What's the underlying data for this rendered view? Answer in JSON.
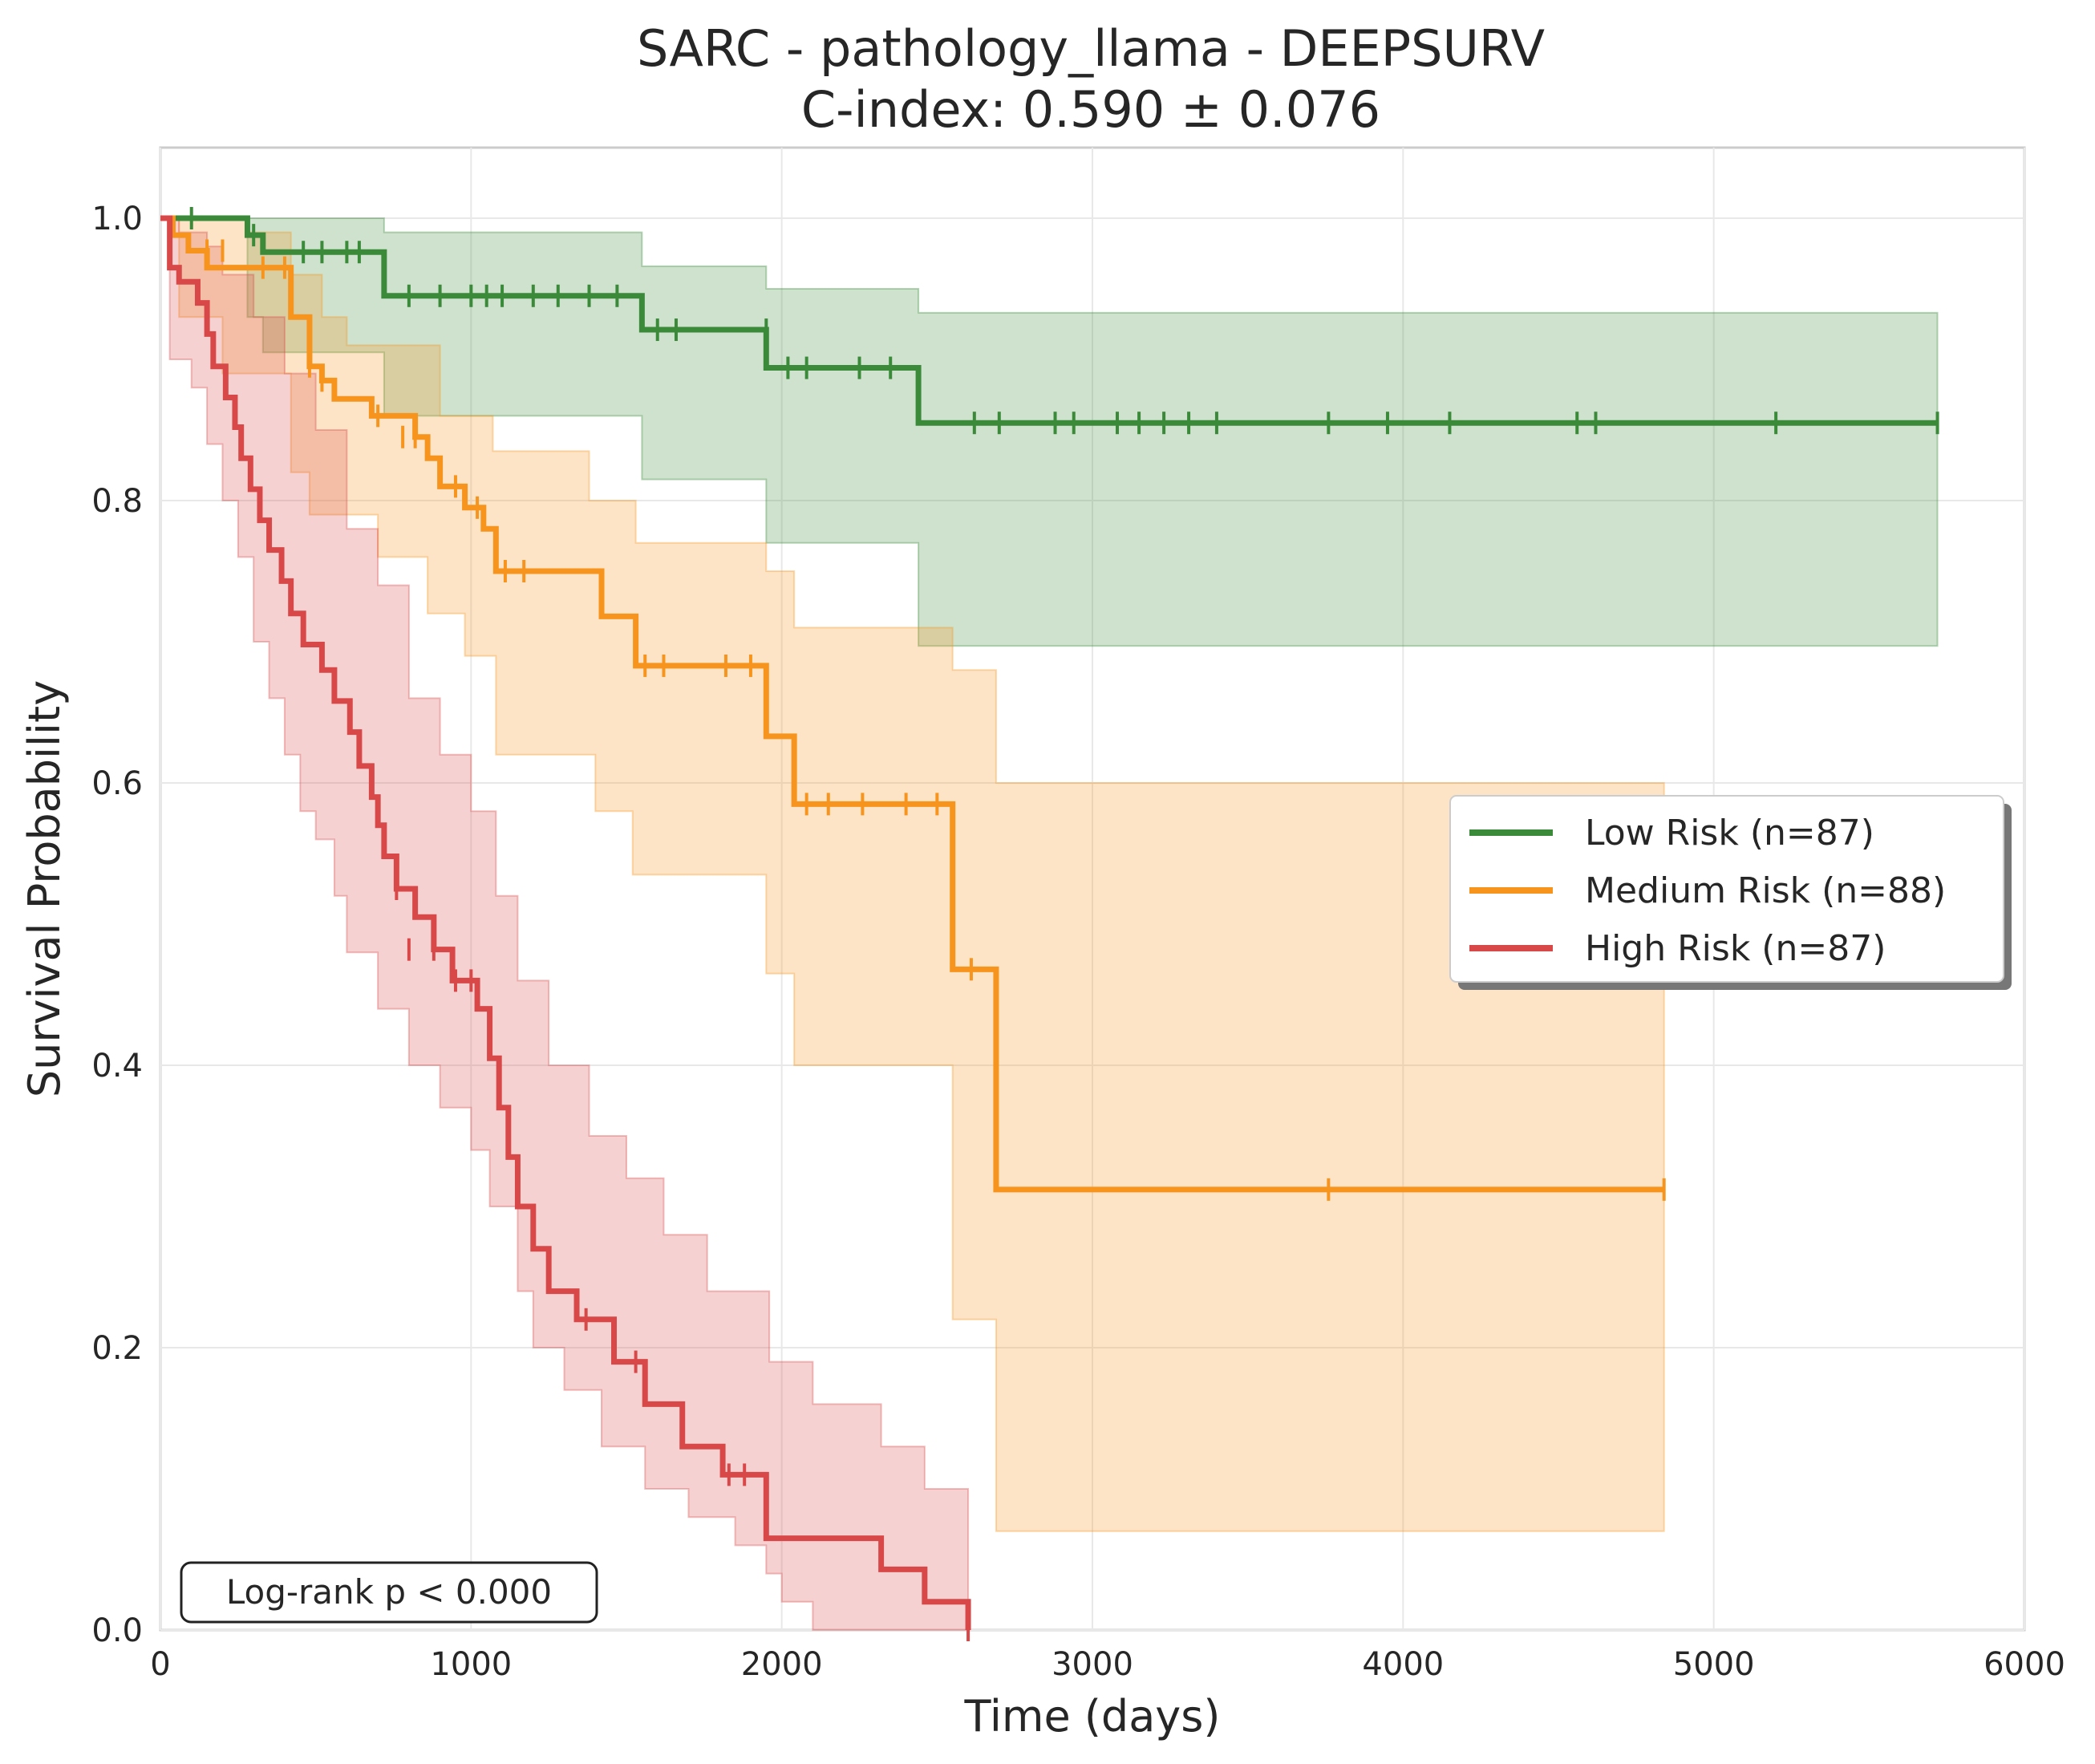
{
  "chart_data": {
    "type": "line",
    "subtype": "kaplan-meier",
    "title": "SARC - pathology_llama - DEEPSURV",
    "subtitle": "C-index: 0.590 ± 0.076",
    "xlabel": "Time (days)",
    "ylabel": "Survival Probability",
    "xlim": [
      0,
      6000
    ],
    "ylim": [
      0,
      1.05
    ],
    "xticks": [
      0,
      1000,
      2000,
      3000,
      4000,
      5000,
      6000
    ],
    "xtick_labels": [
      "0",
      "1000",
      "2000",
      "3000",
      "4000",
      "5000",
      "6000"
    ],
    "yticks": [
      0.0,
      0.2,
      0.4,
      0.6,
      0.8,
      1.0
    ],
    "ytick_labels": [
      "0.0",
      "0.2",
      "0.4",
      "0.6",
      "0.8",
      "1.0"
    ],
    "grid": true,
    "legend_position": "center-right",
    "annotation": "Log-rank p < 0.000",
    "series": [
      {
        "name": "Low Risk (n=87)",
        "color": "#3a8a3a",
        "steps": [
          [
            0,
            1.0
          ],
          [
            280,
            0.988
          ],
          [
            330,
            0.976
          ],
          [
            720,
            0.945
          ],
          [
            1550,
            0.921
          ],
          [
            1950,
            0.894
          ],
          [
            2440,
            0.855
          ],
          [
            5720,
            0.855
          ]
        ],
        "ci_upper": [
          [
            0,
            1.0
          ],
          [
            280,
            1.0
          ],
          [
            720,
            0.99
          ],
          [
            1550,
            0.966
          ],
          [
            1950,
            0.95
          ],
          [
            2440,
            0.933
          ],
          [
            5720,
            0.933
          ]
        ],
        "ci_lower": [
          [
            0,
            1.0
          ],
          [
            280,
            0.93
          ],
          [
            330,
            0.905
          ],
          [
            720,
            0.86
          ],
          [
            1550,
            0.815
          ],
          [
            1950,
            0.77
          ],
          [
            2440,
            0.697
          ],
          [
            5720,
            0.697
          ]
        ],
        "censors": [
          [
            100,
            1.0
          ],
          [
            300,
            0.988
          ],
          [
            460,
            0.976
          ],
          [
            520,
            0.976
          ],
          [
            600,
            0.976
          ],
          [
            640,
            0.976
          ],
          [
            800,
            0.945
          ],
          [
            900,
            0.945
          ],
          [
            1000,
            0.945
          ],
          [
            1050,
            0.945
          ],
          [
            1100,
            0.945
          ],
          [
            1200,
            0.945
          ],
          [
            1280,
            0.945
          ],
          [
            1380,
            0.945
          ],
          [
            1470,
            0.945
          ],
          [
            1600,
            0.921
          ],
          [
            1660,
            0.921
          ],
          [
            1950,
            0.921
          ],
          [
            2020,
            0.894
          ],
          [
            2080,
            0.894
          ],
          [
            2250,
            0.894
          ],
          [
            2350,
            0.894
          ],
          [
            2620,
            0.855
          ],
          [
            2700,
            0.855
          ],
          [
            2880,
            0.855
          ],
          [
            2940,
            0.855
          ],
          [
            3080,
            0.855
          ],
          [
            3150,
            0.855
          ],
          [
            3230,
            0.855
          ],
          [
            3310,
            0.855
          ],
          [
            3400,
            0.855
          ],
          [
            3760,
            0.855
          ],
          [
            3950,
            0.855
          ],
          [
            4150,
            0.855
          ],
          [
            4560,
            0.855
          ],
          [
            4620,
            0.855
          ],
          [
            5200,
            0.855
          ],
          [
            5720,
            0.855
          ]
        ]
      },
      {
        "name": "Medium Risk (n=88)",
        "color": "#f7941d",
        "steps": [
          [
            0,
            1.0
          ],
          [
            40,
            0.988
          ],
          [
            90,
            0.977
          ],
          [
            150,
            0.965
          ],
          [
            260,
            0.965
          ],
          [
            420,
            0.93
          ],
          [
            480,
            0.895
          ],
          [
            520,
            0.885
          ],
          [
            560,
            0.872
          ],
          [
            680,
            0.86
          ],
          [
            820,
            0.845
          ],
          [
            860,
            0.83
          ],
          [
            900,
            0.81
          ],
          [
            980,
            0.795
          ],
          [
            1040,
            0.78
          ],
          [
            1080,
            0.75
          ],
          [
            1380,
            0.75
          ],
          [
            1420,
            0.718
          ],
          [
            1530,
            0.683
          ],
          [
            1950,
            0.633
          ],
          [
            2040,
            0.585
          ],
          [
            2550,
            0.468
          ],
          [
            2690,
            0.312
          ],
          [
            4840,
            0.312
          ]
        ],
        "ci_upper": [
          [
            0,
            1.0
          ],
          [
            280,
            0.99
          ],
          [
            420,
            0.96
          ],
          [
            520,
            0.93
          ],
          [
            600,
            0.91
          ],
          [
            900,
            0.86
          ],
          [
            1070,
            0.835
          ],
          [
            1380,
            0.8
          ],
          [
            1530,
            0.77
          ],
          [
            1950,
            0.75
          ],
          [
            2040,
            0.71
          ],
          [
            2550,
            0.68
          ],
          [
            2690,
            0.6
          ],
          [
            4840,
            0.6
          ]
        ],
        "ci_lower": [
          [
            0,
            1.0
          ],
          [
            60,
            0.93
          ],
          [
            200,
            0.89
          ],
          [
            420,
            0.82
          ],
          [
            480,
            0.79
          ],
          [
            700,
            0.76
          ],
          [
            860,
            0.72
          ],
          [
            980,
            0.69
          ],
          [
            1080,
            0.62
          ],
          [
            1400,
            0.58
          ],
          [
            1520,
            0.535
          ],
          [
            1950,
            0.465
          ],
          [
            2040,
            0.4
          ],
          [
            2550,
            0.22
          ],
          [
            2690,
            0.07
          ],
          [
            4840,
            0.07
          ]
        ],
        "censors": [
          [
            150,
            0.977
          ],
          [
            200,
            0.977
          ],
          [
            330,
            0.965
          ],
          [
            400,
            0.965
          ],
          [
            480,
            0.895
          ],
          [
            520,
            0.885
          ],
          [
            700,
            0.86
          ],
          [
            780,
            0.845
          ],
          [
            820,
            0.845
          ],
          [
            950,
            0.81
          ],
          [
            1020,
            0.795
          ],
          [
            1110,
            0.75
          ],
          [
            1170,
            0.75
          ],
          [
            1560,
            0.683
          ],
          [
            1620,
            0.683
          ],
          [
            1820,
            0.683
          ],
          [
            1900,
            0.683
          ],
          [
            2080,
            0.585
          ],
          [
            2150,
            0.585
          ],
          [
            2260,
            0.585
          ],
          [
            2400,
            0.585
          ],
          [
            2500,
            0.585
          ],
          [
            2610,
            0.468
          ],
          [
            3760,
            0.312
          ],
          [
            4840,
            0.312
          ]
        ]
      },
      {
        "name": "High Risk (n=87)",
        "color": "#d94848",
        "steps": [
          [
            0,
            1.0
          ],
          [
            30,
            0.965
          ],
          [
            60,
            0.955
          ],
          [
            120,
            0.94
          ],
          [
            150,
            0.918
          ],
          [
            170,
            0.895
          ],
          [
            210,
            0.873
          ],
          [
            240,
            0.852
          ],
          [
            260,
            0.83
          ],
          [
            290,
            0.808
          ],
          [
            320,
            0.786
          ],
          [
            350,
            0.765
          ],
          [
            390,
            0.743
          ],
          [
            420,
            0.72
          ],
          [
            460,
            0.698
          ],
          [
            520,
            0.68
          ],
          [
            560,
            0.658
          ],
          [
            610,
            0.636
          ],
          [
            640,
            0.612
          ],
          [
            680,
            0.59
          ],
          [
            700,
            0.57
          ],
          [
            720,
            0.548
          ],
          [
            760,
            0.525
          ],
          [
            820,
            0.505
          ],
          [
            880,
            0.482
          ],
          [
            940,
            0.46
          ],
          [
            1020,
            0.44
          ],
          [
            1060,
            0.405
          ],
          [
            1090,
            0.37
          ],
          [
            1120,
            0.335
          ],
          [
            1150,
            0.3
          ],
          [
            1200,
            0.27
          ],
          [
            1250,
            0.24
          ],
          [
            1340,
            0.22
          ],
          [
            1460,
            0.19
          ],
          [
            1560,
            0.16
          ],
          [
            1680,
            0.13
          ],
          [
            1810,
            0.11
          ],
          [
            1950,
            0.065
          ],
          [
            2320,
            0.043
          ],
          [
            2460,
            0.02
          ],
          [
            2600,
            0.0
          ]
        ],
        "ci_upper": [
          [
            0,
            1.0
          ],
          [
            60,
            0.99
          ],
          [
            150,
            0.98
          ],
          [
            200,
            0.96
          ],
          [
            300,
            0.93
          ],
          [
            400,
            0.89
          ],
          [
            500,
            0.85
          ],
          [
            600,
            0.78
          ],
          [
            700,
            0.74
          ],
          [
            800,
            0.66
          ],
          [
            900,
            0.62
          ],
          [
            1000,
            0.58
          ],
          [
            1080,
            0.52
          ],
          [
            1150,
            0.46
          ],
          [
            1250,
            0.4
          ],
          [
            1380,
            0.35
          ],
          [
            1500,
            0.32
          ],
          [
            1620,
            0.28
          ],
          [
            1760,
            0.24
          ],
          [
            1960,
            0.19
          ],
          [
            2100,
            0.16
          ],
          [
            2320,
            0.13
          ],
          [
            2460,
            0.1
          ],
          [
            2600,
            0.1
          ]
        ],
        "ci_lower": [
          [
            0,
            1.0
          ],
          [
            30,
            0.9
          ],
          [
            100,
            0.88
          ],
          [
            150,
            0.84
          ],
          [
            200,
            0.8
          ],
          [
            250,
            0.76
          ],
          [
            300,
            0.7
          ],
          [
            350,
            0.66
          ],
          [
            400,
            0.62
          ],
          [
            450,
            0.58
          ],
          [
            500,
            0.56
          ],
          [
            560,
            0.52
          ],
          [
            600,
            0.48
          ],
          [
            700,
            0.44
          ],
          [
            800,
            0.4
          ],
          [
            900,
            0.37
          ],
          [
            1000,
            0.34
          ],
          [
            1060,
            0.3
          ],
          [
            1150,
            0.24
          ],
          [
            1200,
            0.2
          ],
          [
            1300,
            0.17
          ],
          [
            1420,
            0.13
          ],
          [
            1560,
            0.1
          ],
          [
            1700,
            0.08
          ],
          [
            1850,
            0.06
          ],
          [
            1950,
            0.04
          ],
          [
            2000,
            0.02
          ],
          [
            2100,
            0.0
          ]
        ],
        "censors": [
          [
            760,
            0.525
          ],
          [
            800,
            0.482
          ],
          [
            880,
            0.482
          ],
          [
            950,
            0.46
          ],
          [
            1000,
            0.46
          ],
          [
            1370,
            0.22
          ],
          [
            1530,
            0.19
          ],
          [
            1830,
            0.11
          ],
          [
            1880,
            0.11
          ],
          [
            2600,
            0.0
          ]
        ]
      }
    ]
  }
}
